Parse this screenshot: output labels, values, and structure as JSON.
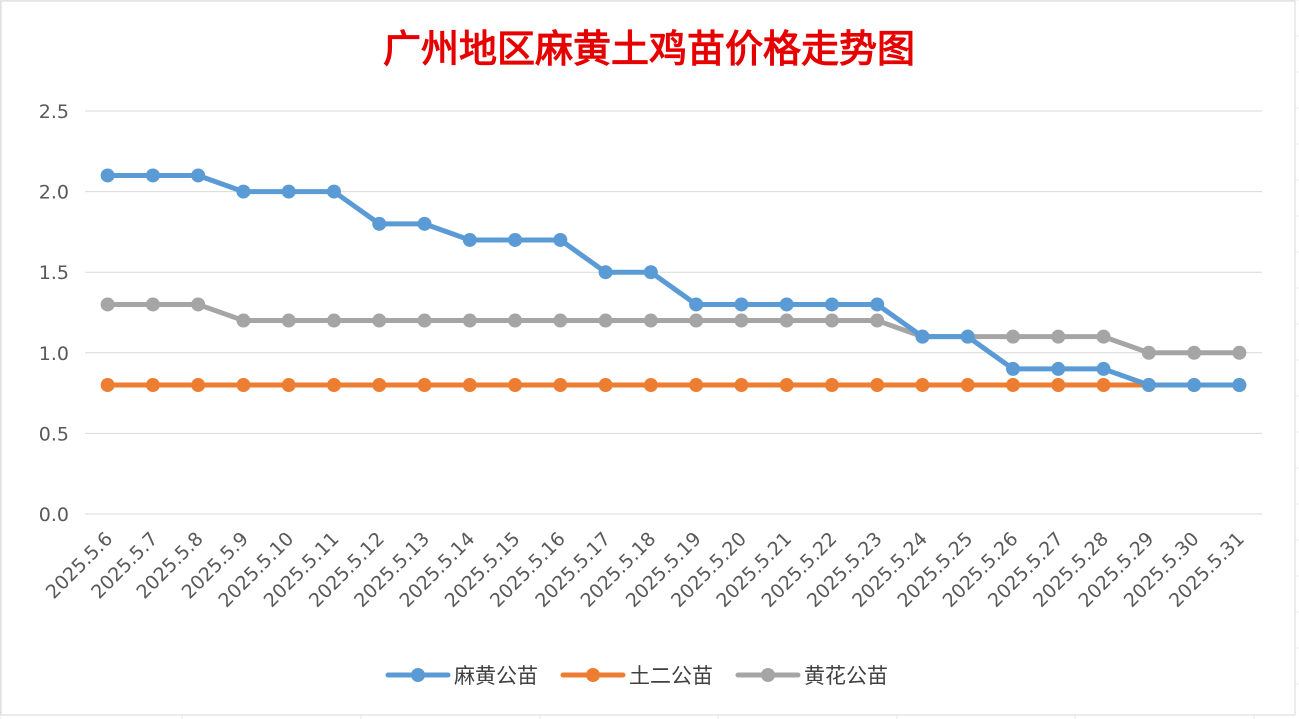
{
  "chart_data": {
    "type": "line",
    "title": "广州地区麻黄土鸡苗价格走势图",
    "title_color": "#E60000",
    "xlabel": "",
    "ylabel": "",
    "ylim": [
      0,
      2.5
    ],
    "y_ticks": [
      "0.0",
      "0.5",
      "1.0",
      "1.5",
      "2.0",
      "2.5"
    ],
    "grid": true,
    "legend_position": "bottom",
    "categories": [
      "2025.5.6",
      "2025.5.7",
      "2025.5.8",
      "2025.5.9",
      "2025.5.10",
      "2025.5.11",
      "2025.5.12",
      "2025.5.13",
      "2025.5.14",
      "2025.5.15",
      "2025.5.16",
      "2025.5.17",
      "2025.5.18",
      "2025.5.19",
      "2025.5.20",
      "2025.5.21",
      "2025.5.22",
      "2025.5.23",
      "2025.5.24",
      "2025.5.25",
      "2025.5.26",
      "2025.5.27",
      "2025.5.28",
      "2025.5.29",
      "2025.5.30",
      "2025.5.31"
    ],
    "series": [
      {
        "name": "麻黄公苗",
        "color": "#5B9BD5",
        "values": [
          2.1,
          2.1,
          2.1,
          2.0,
          2.0,
          2.0,
          1.8,
          1.8,
          1.7,
          1.7,
          1.7,
          1.5,
          1.5,
          1.3,
          1.3,
          1.3,
          1.3,
          1.3,
          1.1,
          1.1,
          0.9,
          0.9,
          0.9,
          0.8,
          0.8,
          0.8
        ]
      },
      {
        "name": "土二公苗",
        "color": "#ED7D31",
        "values": [
          0.8,
          0.8,
          0.8,
          0.8,
          0.8,
          0.8,
          0.8,
          0.8,
          0.8,
          0.8,
          0.8,
          0.8,
          0.8,
          0.8,
          0.8,
          0.8,
          0.8,
          0.8,
          0.8,
          0.8,
          0.8,
          0.8,
          0.8,
          0.8,
          0.8,
          0.8
        ]
      },
      {
        "name": "黄花公苗",
        "color": "#A5A5A5",
        "values": [
          1.3,
          1.3,
          1.3,
          1.2,
          1.2,
          1.2,
          1.2,
          1.2,
          1.2,
          1.2,
          1.2,
          1.2,
          1.2,
          1.2,
          1.2,
          1.2,
          1.2,
          1.2,
          1.1,
          1.1,
          1.1,
          1.1,
          1.1,
          1.0,
          1.0,
          1.0
        ]
      }
    ]
  }
}
